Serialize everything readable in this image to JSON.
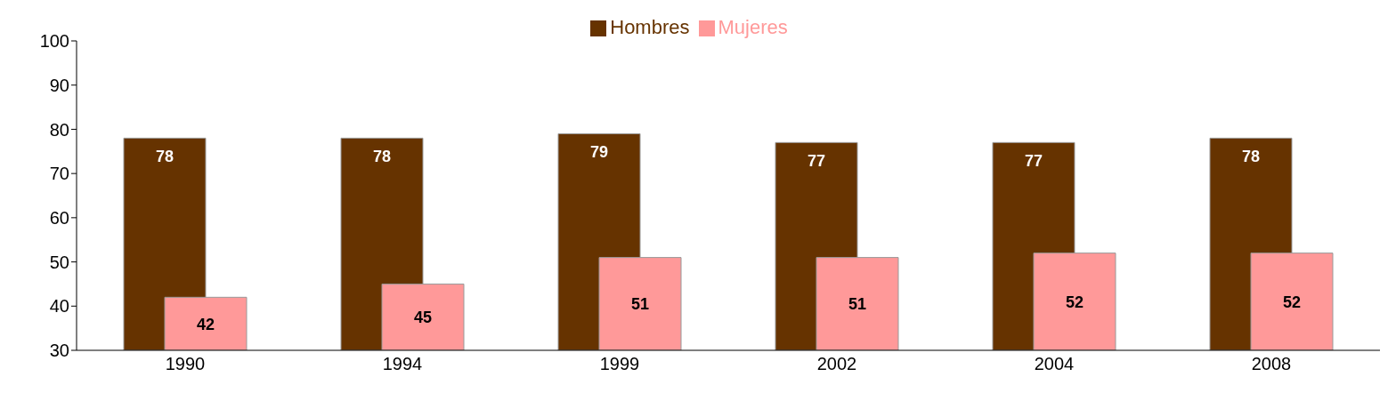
{
  "chart_data": {
    "type": "bar",
    "categories": [
      "1990",
      "1994",
      "1999",
      "2002",
      "2004",
      "2008"
    ],
    "series": [
      {
        "name": "Hombres",
        "color": "#663300",
        "values": [
          78,
          78,
          79,
          77,
          77,
          78
        ]
      },
      {
        "name": "Mujeres",
        "color": "#ff9999",
        "values": [
          42,
          45,
          51,
          51,
          52,
          52
        ]
      }
    ],
    "ylim": [
      30,
      100
    ],
    "yticks": [
      30,
      40,
      50,
      60,
      70,
      80,
      90,
      100
    ],
    "grid": false,
    "legend": "top",
    "data_labels": true
  }
}
